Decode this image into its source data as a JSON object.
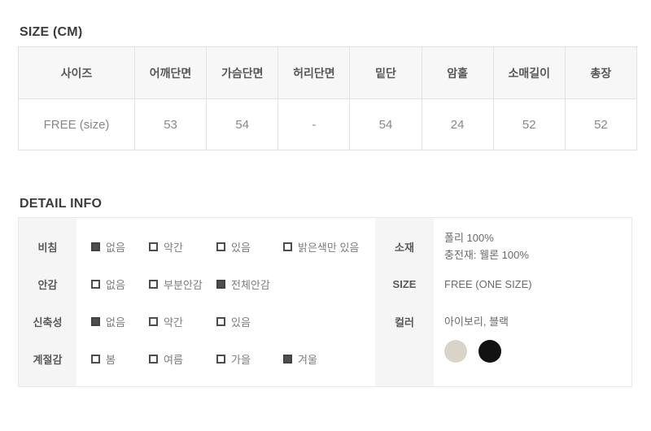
{
  "size_section": {
    "title": "SIZE (CM)",
    "table": {
      "headers": [
        "사이즈",
        "어깨단면",
        "가슴단면",
        "허리단면",
        "밑단",
        "암홀",
        "소매길이",
        "총장"
      ],
      "rows": [
        [
          "FREE (size)",
          "53",
          "54",
          "-",
          "54",
          "24",
          "52",
          "52"
        ]
      ]
    }
  },
  "detail_section": {
    "title": "DETAIL INFO",
    "attributes": [
      {
        "label": "비침",
        "options": [
          {
            "text": "없음",
            "checked": true
          },
          {
            "text": "약간",
            "checked": false
          },
          {
            "text": "있음",
            "checked": false
          },
          {
            "text": "밝은색만 있음",
            "checked": false
          }
        ]
      },
      {
        "label": "안감",
        "options": [
          {
            "text": "없음",
            "checked": false
          },
          {
            "text": "부분안감",
            "checked": false
          },
          {
            "text": "전체안감",
            "checked": true
          }
        ]
      },
      {
        "label": "신축성",
        "options": [
          {
            "text": "없음",
            "checked": true
          },
          {
            "text": "약간",
            "checked": false
          },
          {
            "text": "있음",
            "checked": false
          }
        ]
      },
      {
        "label": "계절감",
        "options": [
          {
            "text": "봄",
            "checked": false
          },
          {
            "text": "여름",
            "checked": false
          },
          {
            "text": "가을",
            "checked": false
          },
          {
            "text": "겨울",
            "checked": true
          }
        ]
      }
    ],
    "info": [
      {
        "label": "소재",
        "lines": [
          "폴리 100%",
          "충전재: 웰론 100%"
        ]
      },
      {
        "label": "SIZE",
        "lines": [
          "FREE (ONE SIZE)"
        ]
      },
      {
        "label": "컬러",
        "lines": [
          "아이보리, 블랙"
        ],
        "swatches": [
          {
            "name": "아이보리",
            "color": "#d8d5c8"
          },
          {
            "name": "블랙",
            "color": "#121212"
          }
        ]
      }
    ]
  }
}
